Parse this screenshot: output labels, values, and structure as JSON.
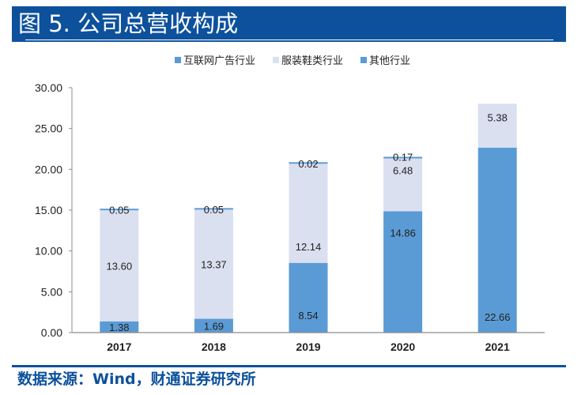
{
  "header": {
    "title": "图 5. 公司总营收构成"
  },
  "footer": {
    "source": "数据来源：Wind，财通证券研究所"
  },
  "colors": {
    "header_bg": "#0d519c",
    "internet_ads": "#5b9bd5",
    "apparel": "#dae0f0",
    "other": "#5b9bd5"
  },
  "chart_data": {
    "type": "bar",
    "stacked": true,
    "title": "",
    "xlabel": "",
    "ylabel": "",
    "categories": [
      "2017",
      "2018",
      "2019",
      "2020",
      "2021"
    ],
    "series": [
      {
        "name": "互联网广告行业",
        "values": [
          1.38,
          1.69,
          8.54,
          14.86,
          22.66
        ],
        "labels": [
          "1.38",
          "1.69",
          "8.54",
          "14.86",
          "22.66"
        ]
      },
      {
        "name": "服装鞋类行业",
        "values": [
          13.6,
          13.37,
          12.14,
          6.48,
          5.38
        ],
        "labels": [
          "13.60",
          "13.37",
          "12.14",
          "6.48",
          "5.38"
        ]
      },
      {
        "name": "其他行业",
        "values": [
          0.05,
          0.05,
          0.02,
          0.17,
          null
        ],
        "labels": [
          "0.05",
          "0.05",
          "0.02",
          "0.17",
          null
        ]
      }
    ],
    "ylim": [
      0,
      30
    ],
    "yticks": [
      "0.00",
      "5.00",
      "10.00",
      "15.00",
      "20.00",
      "25.00",
      "30.00"
    ],
    "ytick_values": [
      0,
      5,
      10,
      15,
      20,
      25,
      30
    ],
    "grid": false,
    "legend_position": "top"
  }
}
